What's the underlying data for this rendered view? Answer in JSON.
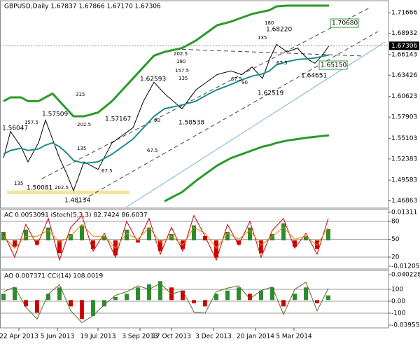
{
  "chart_data": [
    {
      "type": "line",
      "title": "GBPUSD,Daily 1.67837 1.67866 1.67170 1.67306",
      "x": [
        5,
        15,
        30,
        40,
        55,
        65,
        75,
        85,
        95,
        105,
        120,
        140,
        160,
        175,
        190,
        205,
        220,
        235,
        260,
        280,
        295,
        310,
        330,
        345,
        360,
        375,
        385,
        395,
        410,
        425,
        440,
        450,
        460,
        470
      ],
      "xlim": [
        0,
        555
      ],
      "xticks": [
        {
          "value": 27,
          "label": "22 Apr 2013"
        },
        {
          "value": 82,
          "label": "5 Jun 2013"
        },
        {
          "value": 140,
          "label": "19 Jul 2013"
        },
        {
          "value": 200,
          "label": "3 Sep 2013"
        },
        {
          "value": 245,
          "label": "17 Oct 2013"
        },
        {
          "value": 305,
          "label": "3 Dec 2013"
        },
        {
          "value": 365,
          "label": "20 Jan 2014"
        },
        {
          "value": 420,
          "label": "5 Mar 2014"
        }
      ],
      "ylim": [
        1.459,
        1.7325
      ],
      "yticks": [
        1.71666,
        1.68932,
        1.66143,
        1.63426,
        1.60623,
        1.57903,
        1.55103,
        1.52383,
        1.49583,
        1.46863
      ],
      "grid": false,
      "last": 1.67306,
      "series": [
        {
          "color": "#000000",
          "width": 1,
          "values": [
            1.525,
            1.56,
            1.54,
            1.52,
            1.545,
            1.575,
            1.55,
            1.525,
            1.505,
            1.482,
            1.52,
            1.51,
            1.545,
            1.555,
            1.565,
            1.6,
            1.625,
            1.61,
            1.59,
            1.615,
            1.625,
            1.635,
            1.64,
            1.635,
            1.645,
            1.63,
            1.655,
            1.675,
            1.665,
            1.67,
            1.655,
            1.65,
            1.66,
            1.673
          ]
        },
        {
          "color": "#1e8c8c",
          "width": 2,
          "values": [
            1.53,
            1.535,
            1.538,
            1.535,
            1.537,
            1.542,
            1.545,
            1.54,
            1.532,
            1.522,
            1.518,
            1.52,
            1.53,
            1.54,
            1.55,
            1.565,
            1.58,
            1.59,
            1.595,
            1.6,
            1.608,
            1.615,
            1.622,
            1.628,
            1.633,
            1.636,
            1.64,
            1.648,
            1.652,
            1.655,
            1.656,
            1.657,
            1.659,
            1.661
          ]
        },
        {
          "color": "#2a9a2a",
          "width": 3,
          "values": [
            1.6,
            1.605,
            1.605,
            1.6,
            1.6,
            1.605,
            1.61,
            1.6,
            1.59,
            1.58,
            1.58,
            1.585,
            1.6,
            1.615,
            1.63,
            1.645,
            1.66,
            1.665,
            1.67,
            1.68,
            1.69,
            1.7,
            1.705,
            1.71,
            1.715,
            1.718,
            1.72,
            1.725,
            1.726,
            1.726,
            1.726,
            1.726,
            1.726,
            1.726
          ]
        },
        {
          "color": "#2a9a2a",
          "width": 3,
          "values": [
            null,
            null,
            null,
            null,
            null,
            null,
            null,
            null,
            null,
            null,
            null,
            null,
            null,
            null,
            null,
            null,
            null,
            1.468,
            1.48,
            1.495,
            1.505,
            1.515,
            1.525,
            1.53,
            1.535,
            1.54,
            1.542,
            1.545,
            1.548,
            1.55,
            1.552,
            1.553,
            1.554,
            1.555
          ]
        }
      ],
      "annotations": [
        {
          "text": "1.56047",
          "x": 3,
          "y": 1.5643
        },
        {
          "text": "1.57509",
          "x": 60,
          "y": 1.5828
        },
        {
          "text": "1.50081",
          "x": 38,
          "y": 1.4858
        },
        {
          "text": "1.48134",
          "x": 92,
          "y": 1.4691
        },
        {
          "text": "1.57167",
          "x": 150,
          "y": 1.5763
        },
        {
          "text": "1.62593",
          "x": 200,
          "y": 1.629
        },
        {
          "text": "1.58538",
          "x": 255,
          "y": 1.5717
        },
        {
          "text": "1.62519",
          "x": 368,
          "y": 1.6105
        },
        {
          "text": "1.68220",
          "x": 380,
          "y": 1.6946
        },
        {
          "text": "1.64651",
          "x": 430,
          "y": 1.6336
        },
        {
          "text": "1.65150",
          "x": 458,
          "y": 1.6475,
          "boxed": true
        },
        {
          "text": "1.70680",
          "x": 474,
          "y": 1.7029,
          "boxed": true
        },
        {
          "text": "315",
          "x": 108,
          "y": 1.6087
        },
        {
          "text": "202.5",
          "x": 110,
          "y": 1.5689
        },
        {
          "text": "157.5",
          "x": 35,
          "y": 1.5717
        },
        {
          "text": "135",
          "x": 110,
          "y": 1.5375
        },
        {
          "text": "135",
          "x": 20,
          "y": 1.4913
        },
        {
          "text": "202.5",
          "x": 78,
          "y": 1.4858
        },
        {
          "text": "90",
          "x": 220,
          "y": 1.5745
        },
        {
          "text": "67.5",
          "x": 210,
          "y": 1.5347
        },
        {
          "text": "67.5",
          "x": 145,
          "y": 1.5079
        },
        {
          "text": "202.5",
          "x": 248,
          "y": 1.6622
        },
        {
          "text": "180",
          "x": 252,
          "y": 1.6521
        },
        {
          "text": "157.5",
          "x": 250,
          "y": 1.6401
        },
        {
          "text": "135",
          "x": 255,
          "y": 1.6299
        },
        {
          "text": "90",
          "x": 345,
          "y": 1.6244
        },
        {
          "text": "67.5",
          "x": 330,
          "y": 1.629
        },
        {
          "text": "180",
          "x": 378,
          "y": 1.7029
        },
        {
          "text": "135",
          "x": 368,
          "y": 1.6835
        },
        {
          "text": "67.5",
          "x": 395,
          "y": 1.6502
        }
      ]
    },
    {
      "type": "bar",
      "title": "AC 0.0053091 iStoch(5,3,3) 82.7424 86.6037",
      "x": [
        5,
        21,
        37,
        53,
        69,
        85,
        101,
        117,
        133,
        149,
        165,
        181,
        197,
        213,
        229,
        245,
        261,
        277,
        293,
        309,
        325,
        341,
        357,
        373,
        389,
        405,
        421,
        437,
        453,
        469
      ],
      "xlim": [
        0,
        555
      ],
      "ylim": [
        0,
        100
      ],
      "yticks": [
        20,
        50,
        80
      ],
      "y2lim": [
        -0.01336,
        0.01442
      ],
      "y2ticks": [
        -0.01205,
        0.01311
      ],
      "grid": true,
      "up_color": "#2e8b2e",
      "down_color": "#d00000",
      "series": [
        {
          "axis": "y2",
          "values": [
            0.004,
            -0.003,
            0.005,
            -0.002,
            0.006,
            -0.006,
            0.003,
            0.007,
            -0.004,
            0.002,
            -0.007,
            0.005,
            -0.001,
            0.006,
            -0.005,
            0.003,
            -0.004,
            0.007,
            0.002,
            -0.008,
            0.004,
            -0.002,
            0.006,
            -0.006,
            0.003,
            0.008,
            -0.003,
            0.002,
            -0.004,
            0.0053091
          ]
        },
        {
          "color": "#cc0000",
          "values": [
            60,
            20,
            75,
            40,
            85,
            15,
            70,
            90,
            30,
            60,
            20,
            80,
            45,
            85,
            25,
            70,
            30,
            90,
            55,
            15,
            75,
            40,
            80,
            20,
            65,
            85,
            35,
            60,
            25,
            85
          ]
        },
        {
          "color": "#e08a00",
          "values": [
            55,
            35,
            55,
            55,
            65,
            45,
            55,
            75,
            55,
            55,
            35,
            60,
            50,
            70,
            45,
            55,
            40,
            70,
            60,
            35,
            60,
            50,
            65,
            40,
            55,
            70,
            50,
            55,
            40,
            70
          ]
        }
      ]
    },
    {
      "type": "bar",
      "title": "AO 0.007371 CCI(14) 108.0019",
      "x": [
        5,
        21,
        37,
        53,
        69,
        85,
        101,
        117,
        133,
        149,
        165,
        181,
        197,
        213,
        229,
        245,
        261,
        277,
        293,
        309,
        325,
        341,
        357,
        373,
        389,
        405,
        421,
        437,
        453,
        469
      ],
      "xlim": [
        0,
        555
      ],
      "ylim": [
        -224,
        259
      ],
      "yticks": [
        -100,
        {
          "value": 0,
          "label": "0.00"
        },
        100
      ],
      "y2lim": [
        -0.044,
        0.0469
      ],
      "y2ticks": [
        -0.039555,
        0.040228
      ],
      "grid": true,
      "up_color": "#2e8b2e",
      "down_color": "#d00000",
      "series": [
        {
          "axis": "y2",
          "values": [
            0.01,
            0.02,
            -0.01,
            -0.02,
            0.01,
            0.02,
            -0.01,
            -0.03,
            -0.025,
            -0.01,
            0.005,
            0.01,
            0.02,
            0.025,
            0.03,
            0.02,
            0.015,
            -0.005,
            -0.01,
            0.01,
            0.015,
            0.02,
            0.01,
            0.015,
            0.02,
            -0.01,
            0.01,
            0.02,
            -0.005,
            0.007371
          ]
        },
        {
          "color": "#556b2f",
          "values": [
            80,
            120,
            -50,
            -150,
            60,
            140,
            -80,
            -180,
            -120,
            -30,
            50,
            80,
            130,
            100,
            150,
            60,
            90,
            -90,
            -100,
            80,
            110,
            130,
            20,
            90,
            120,
            -110,
            100,
            160,
            -80,
            108.0019
          ]
        }
      ]
    }
  ]
}
